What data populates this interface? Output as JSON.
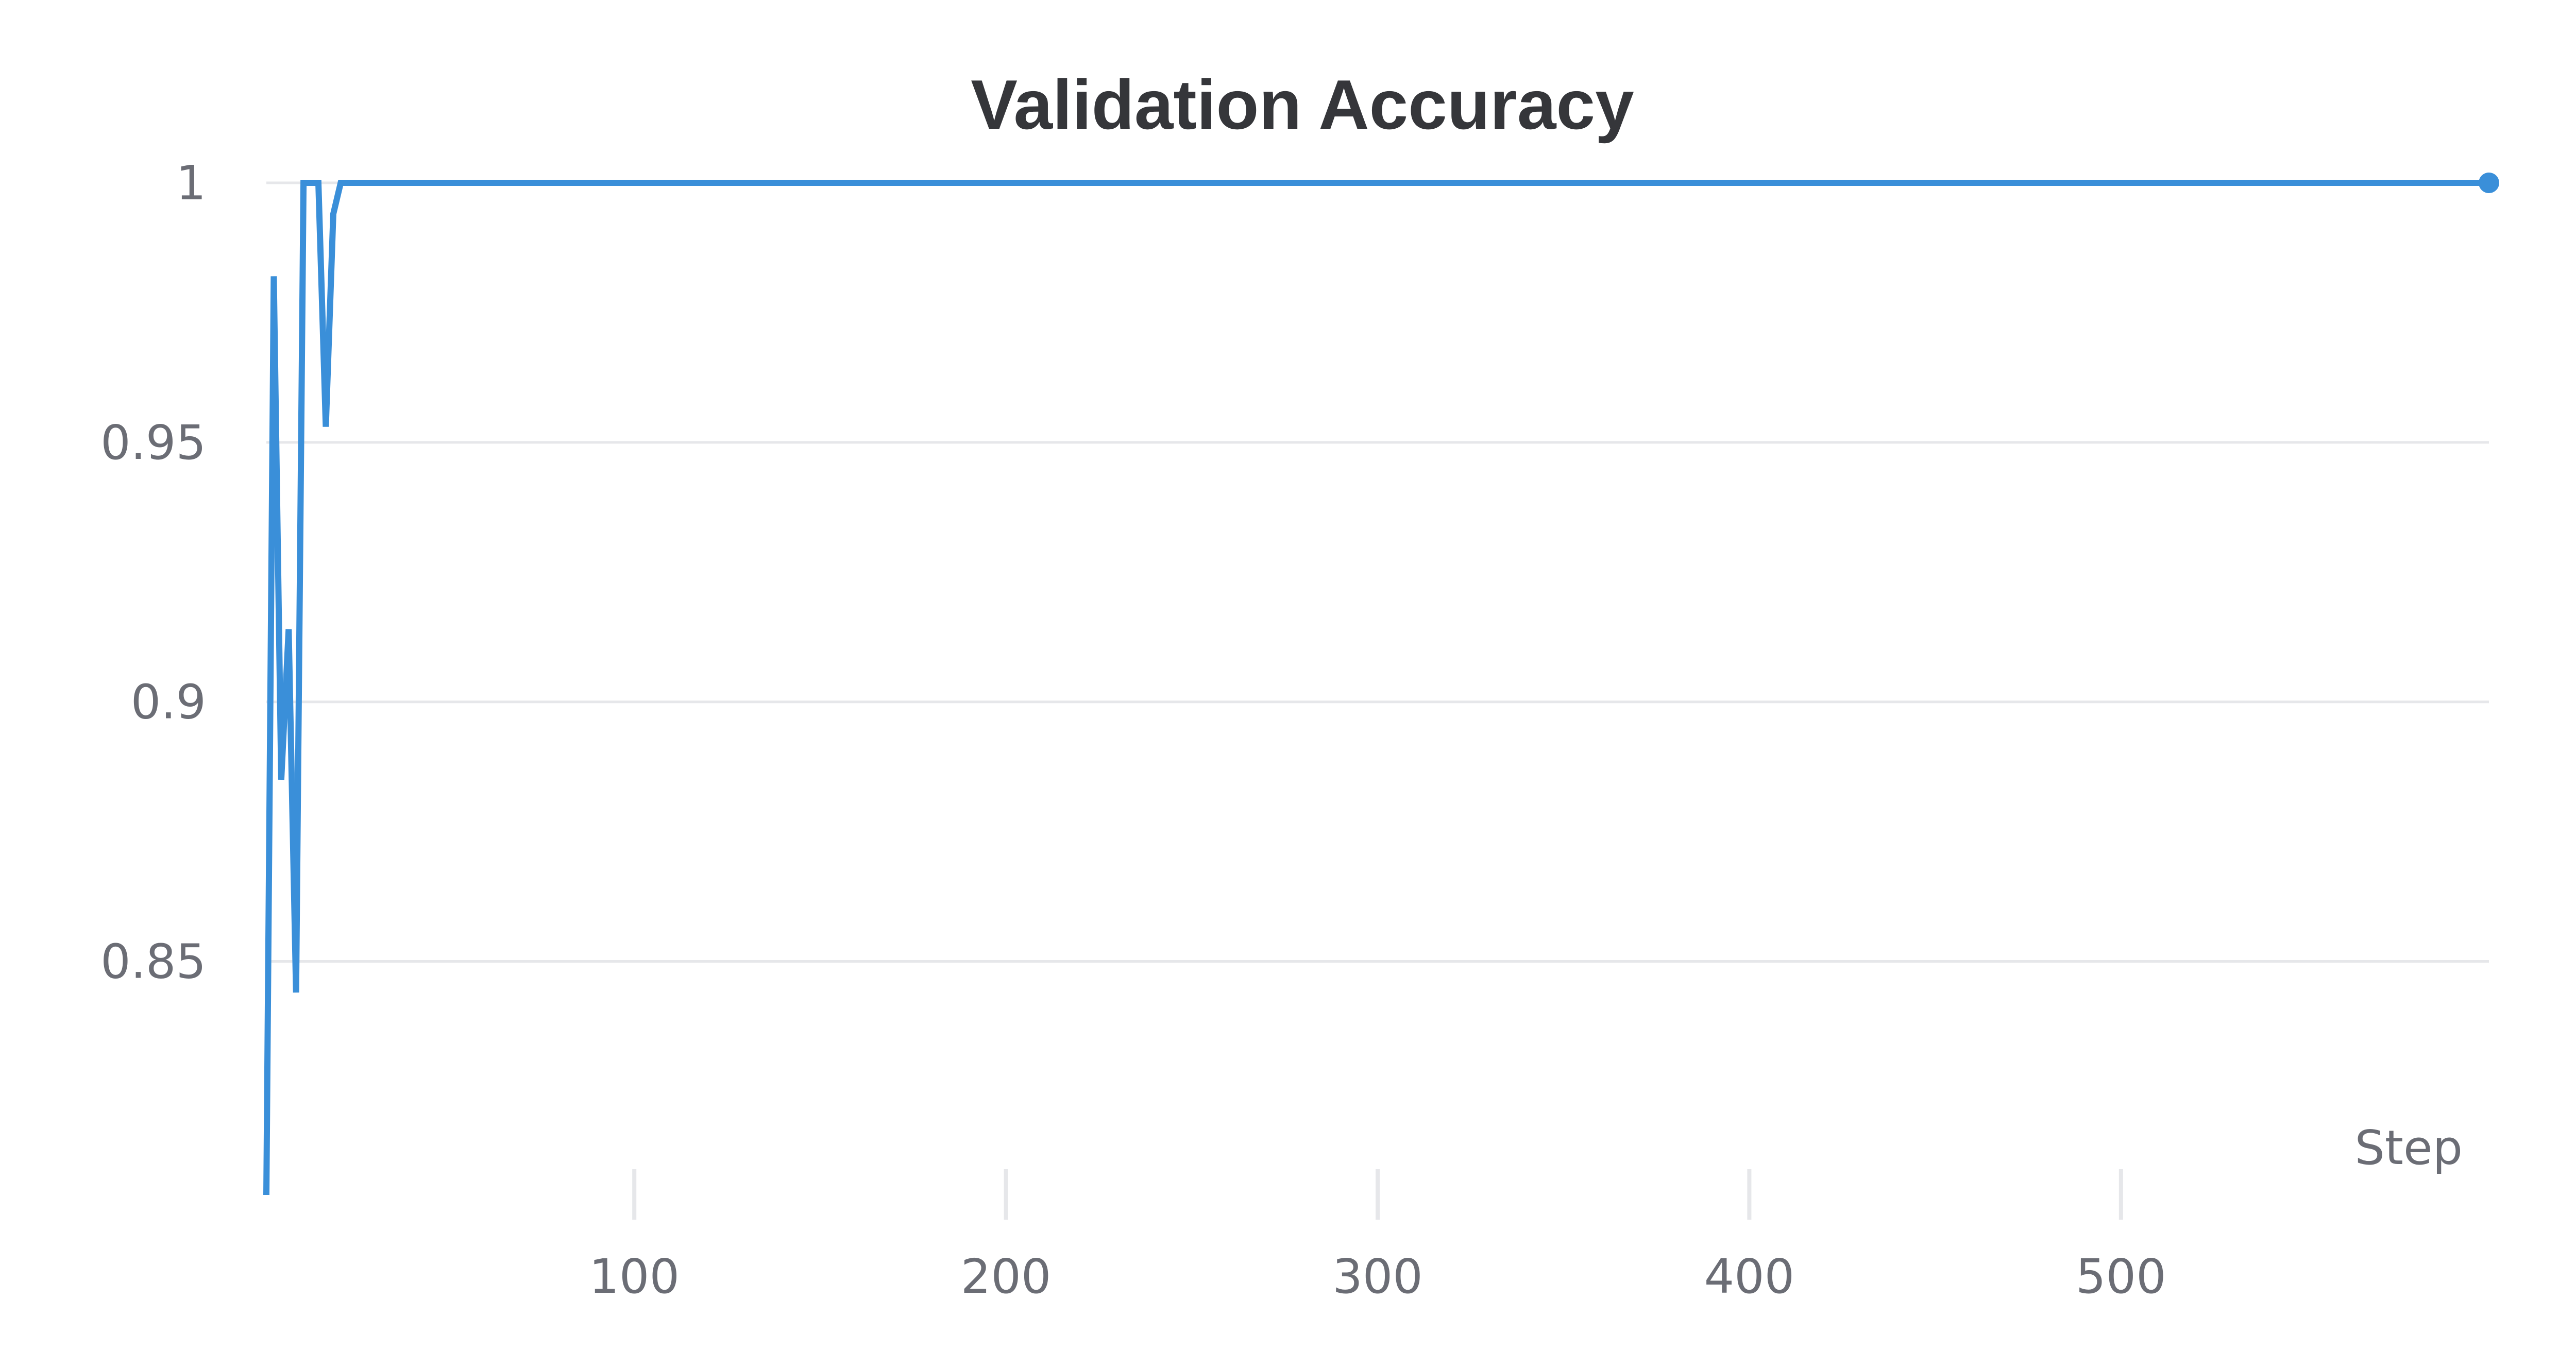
{
  "chart_data": {
    "type": "line",
    "title": "Validation Accuracy",
    "xlabel": "Step",
    "ylabel": "",
    "xlim": [
      1,
      599
    ],
    "ylim": [
      0.805,
      1.0
    ],
    "x_ticks": [
      100,
      200,
      300,
      400,
      500
    ],
    "y_ticks": [
      0.85,
      0.9,
      0.95,
      1
    ],
    "y_tick_labels": [
      "0.85",
      "0.9",
      "0.95",
      "1"
    ],
    "x_tick_labels": [
      "100",
      "200",
      "300",
      "400",
      "500"
    ],
    "grid": true,
    "legend": "none",
    "color": "#3a8fd9",
    "series": [
      {
        "x": [
          1,
          3,
          5,
          7,
          9,
          11,
          13,
          15,
          17,
          19,
          21,
          599
        ],
        "values": [
          0.805,
          0.982,
          0.885,
          0.914,
          0.844,
          1.0,
          1.0,
          1.0,
          0.953,
          0.994,
          1.0,
          1.0
        ]
      }
    ]
  }
}
